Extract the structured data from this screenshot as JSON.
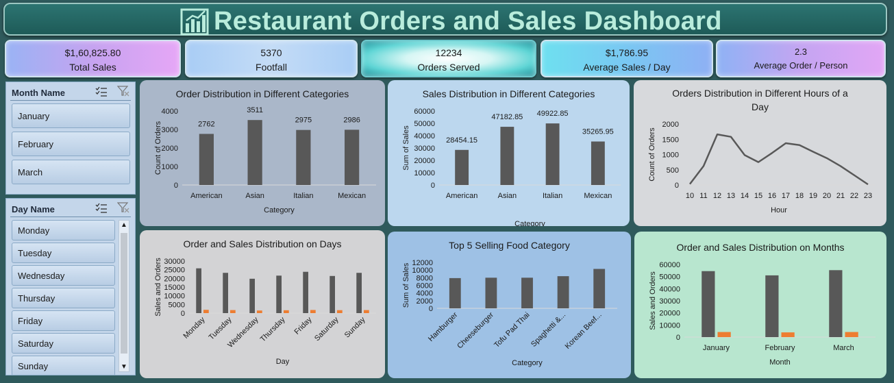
{
  "title": "Restaurant Orders and Sales Dashboard",
  "kpis": [
    {
      "value": "$1,60,825.80",
      "label": "Total Sales"
    },
    {
      "value": "5370",
      "label": "Footfall"
    },
    {
      "value": "12234",
      "label": "Orders Served"
    },
    {
      "value": "$1,786.95",
      "label": "Average Sales / Day"
    },
    {
      "value": "2.3",
      "label": "Average Order / Person"
    }
  ],
  "slicers": {
    "month": {
      "title": "Month Name",
      "items": [
        "January",
        "February",
        "March"
      ]
    },
    "day": {
      "title": "Day Name",
      "items": [
        "Monday",
        "Tuesday",
        "Wednesday",
        "Thursday",
        "Friday",
        "Saturday",
        "Sunday"
      ]
    }
  },
  "colors": {
    "bar": "#585858",
    "orange": "#ed7d31",
    "line": "#585858"
  },
  "chart_data": [
    {
      "id": "orders_cat",
      "type": "bar",
      "title": "Order Distribution in Different Categories",
      "xlabel": "Category",
      "ylabel": "Count of Orders",
      "categories": [
        "American",
        "Asian",
        "Italian",
        "Mexican"
      ],
      "values": [
        2762,
        3511,
        2975,
        2986
      ],
      "data_labels": [
        "2762",
        "3511",
        "2975",
        "2986"
      ],
      "ylim": [
        0,
        4000
      ],
      "yticks": [
        "0",
        "1000",
        "2000",
        "3000",
        "4000"
      ]
    },
    {
      "id": "sales_cat",
      "type": "bar",
      "title": "Sales Distribution in Different Categories",
      "xlabel": "Category",
      "ylabel": "Sum of Sales",
      "categories": [
        "American",
        "Asian",
        "Italian",
        "Mexican"
      ],
      "values": [
        28454.15,
        47182.85,
        49922.85,
        35265.95
      ],
      "data_labels": [
        "28454.15",
        "47182.85",
        "49922.85",
        "35265.95"
      ],
      "ylim": [
        0,
        60000
      ],
      "yticks": [
        "0",
        "10000",
        "20000",
        "30000",
        "40000",
        "50000",
        "60000"
      ]
    },
    {
      "id": "orders_hour",
      "type": "line",
      "title": "Orders Distribution in Different Hours of a Day",
      "title_lines": [
        "Orders Distribution in Different Hours of a",
        "Day"
      ],
      "xlabel": "Hour",
      "ylabel": "Count of Orders",
      "categories": [
        "10",
        "11",
        "12",
        "13",
        "14",
        "15",
        "16",
        "17",
        "18",
        "19",
        "20",
        "21",
        "22",
        "23"
      ],
      "values": [
        30,
        620,
        1660,
        1580,
        980,
        750,
        1050,
        1370,
        1310,
        1090,
        880,
        620,
        320,
        20
      ],
      "ylim": [
        0,
        2000
      ],
      "yticks": [
        "0",
        "500",
        "1000",
        "1500",
        "2000"
      ]
    },
    {
      "id": "days",
      "type": "bar",
      "title": "Order and Sales Distribution on Days",
      "xlabel": "Day",
      "ylabel": "Sales and Orders",
      "categories": [
        "Monday",
        "Tuesday",
        "Wednesday",
        "Thursday",
        "Friday",
        "Saturday",
        "Sunday"
      ],
      "series": [
        {
          "values": [
            25800,
            23200,
            19800,
            21600,
            23800,
            21400,
            23200
          ]
        },
        {
          "values": [
            1900,
            1750,
            1500,
            1650,
            1800,
            1700,
            1750
          ]
        }
      ],
      "ylim": [
        0,
        30000
      ],
      "yticks": [
        "0",
        "5000",
        "10000",
        "15000",
        "20000",
        "25000",
        "30000"
      ]
    },
    {
      "id": "top5",
      "type": "bar",
      "title": "Top 5 Selling Food Category",
      "xlabel": "Category",
      "ylabel": "Sum of Sales",
      "categories": [
        "Hamburger",
        "Cheeseburger",
        "Tofu Pad Thai",
        "Spaghetti &...",
        "Korean Beef..."
      ],
      "values": [
        7900,
        8000,
        8000,
        8400,
        10300
      ],
      "ylim": [
        0,
        12000
      ],
      "yticks": [
        "0",
        "2000",
        "4000",
        "6000",
        "8000",
        "10000",
        "12000"
      ]
    },
    {
      "id": "months",
      "type": "bar",
      "title": "Order and Sales Distribution on Months",
      "xlabel": "Month",
      "ylabel": "Sales and Orders",
      "categories": [
        "January",
        "February",
        "March"
      ],
      "series": [
        {
          "values": [
            54500,
            51000,
            55300
          ]
        },
        {
          "values": [
            4200,
            3900,
            4200
          ]
        }
      ],
      "ylim": [
        0,
        60000
      ],
      "yticks": [
        "0",
        "10000",
        "20000",
        "30000",
        "40000",
        "50000",
        "60000"
      ]
    }
  ]
}
